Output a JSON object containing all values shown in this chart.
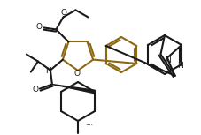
{
  "bg_color": "#ffffff",
  "lc": "#1a1a1a",
  "fc": "#8B6914",
  "lw": 1.5,
  "figsize": [
    2.28,
    1.53
  ],
  "dpi": 100,
  "xlim": [
    0,
    228
  ],
  "ylim": [
    0,
    153
  ]
}
